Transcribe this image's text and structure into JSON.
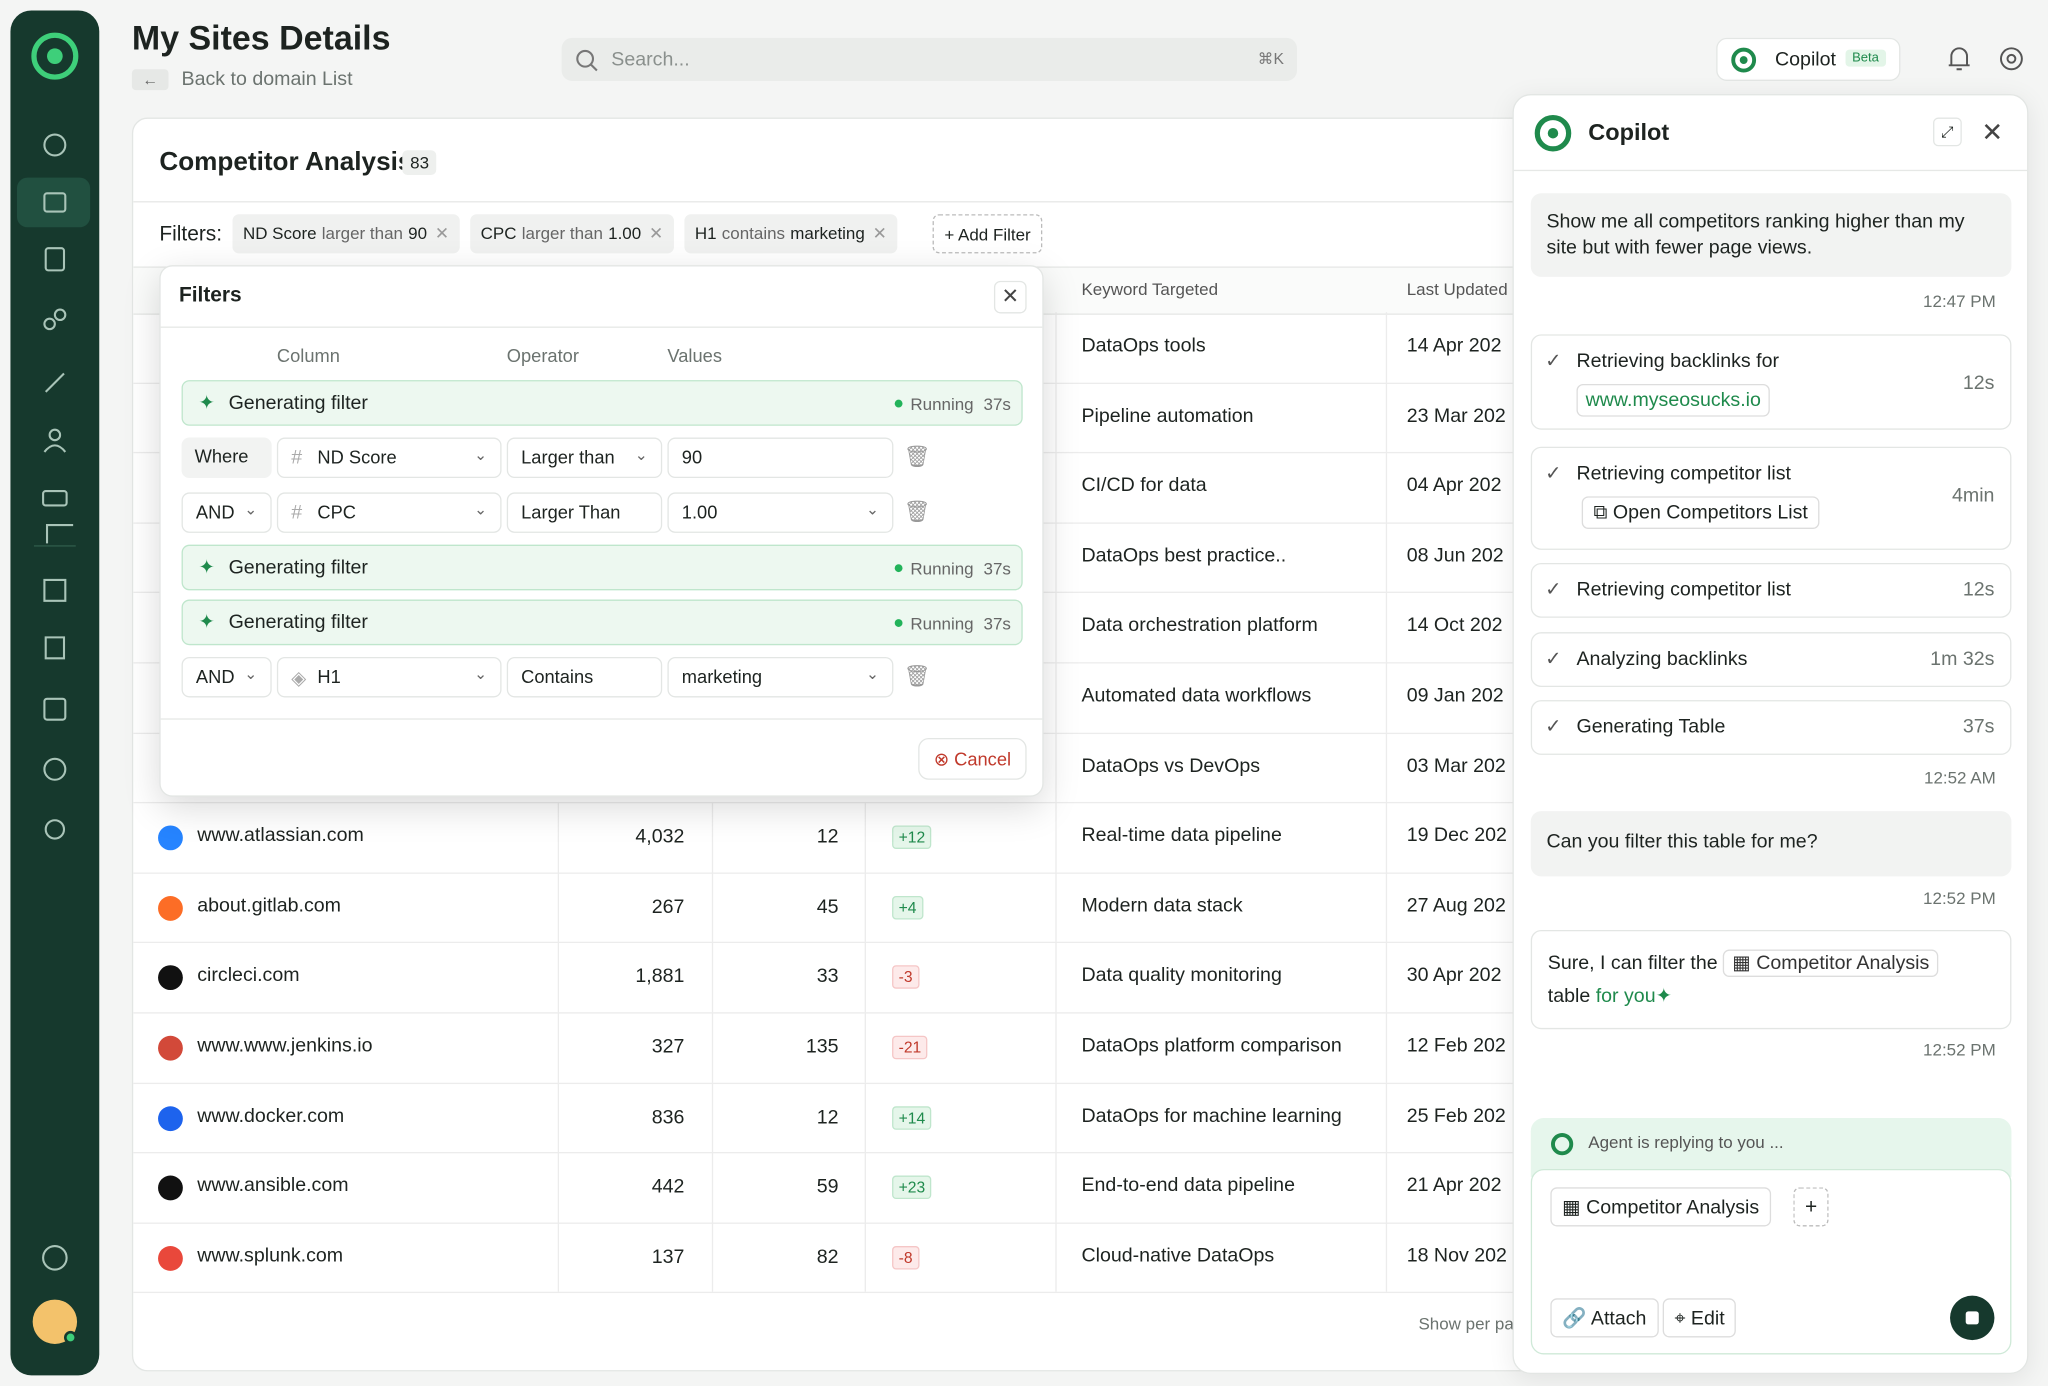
{
  "header": {
    "title": "My Sites Details",
    "back": "Back to domain List",
    "search_placeholder": "Search...",
    "shortcut": "⌘K",
    "copilot_button": "Copilot",
    "beta_badge": "Beta"
  },
  "card": {
    "title": "Competitor Analysis",
    "count": "83",
    "filters_label": "Filters:",
    "filter_chips": [
      {
        "column": "ND Score",
        "operator": "larger than",
        "value": "90"
      },
      {
        "column": "CPC",
        "operator": "larger than",
        "value": "1.00"
      },
      {
        "column": "H1",
        "operator": "contains",
        "value": "marketing"
      }
    ],
    "add_filter": "Add Filter",
    "footer": "Show per pa"
  },
  "table": {
    "headers": [
      "Keyword Targeted",
      "Last Updated"
    ],
    "rows": [
      {
        "keyword": "DataOps tools",
        "date": "14 Apr 202"
      },
      {
        "keyword": "Pipeline automation",
        "date": "23 Mar 202"
      },
      {
        "keyword": "CI/CD for data",
        "date": "04 Apr 202"
      },
      {
        "keyword": "DataOps best practice..",
        "date": "08 Jun 202"
      },
      {
        "keyword": "Data orchestration platform",
        "date": "14 Oct 202"
      },
      {
        "keyword": "Automated data workflows",
        "date": "09 Jan 202"
      },
      {
        "keyword": "DataOps vs DevOps",
        "date": "03 Mar 202"
      },
      {
        "domain": "www.atlassian.com",
        "pages": "4,032",
        "rank": "12",
        "change": "+12",
        "keyword": "Real-time data pipeline",
        "date": "19 Dec 202"
      },
      {
        "domain": "about.gitlab.com",
        "pages": "267",
        "rank": "45",
        "change": "+4",
        "keyword": "Modern data stack",
        "date": "27 Aug 202"
      },
      {
        "domain": "circleci.com",
        "pages": "1,881",
        "rank": "33",
        "change": "-3",
        "keyword": "Data quality monitoring",
        "date": "30 Apr 202"
      },
      {
        "domain": "www.www.jenkins.io",
        "pages": "327",
        "rank": "135",
        "change": "-21",
        "keyword": "DataOps platform comparison",
        "date": "12 Feb 202"
      },
      {
        "domain": "www.docker.com",
        "pages": "836",
        "rank": "12",
        "change": "+14",
        "keyword": "DataOps for machine learning",
        "date": "25 Feb 202"
      },
      {
        "domain": "www.ansible.com",
        "pages": "442",
        "rank": "59",
        "change": "+23",
        "keyword": "End-to-end data pipeline",
        "date": "21 Apr 202"
      },
      {
        "domain": "www.splunk.com",
        "pages": "137",
        "rank": "82",
        "change": "-8",
        "keyword": "Cloud-native DataOps",
        "date": "18 Nov 202"
      }
    ]
  },
  "filters_popup": {
    "title": "Filters",
    "columns": [
      "Column",
      "Operator",
      "Values"
    ],
    "rows": [
      {
        "generating": "Generating filter",
        "status": "Running",
        "time": "37s"
      },
      {
        "conjunction": "Where",
        "column": "ND Score",
        "operator": "Larger than",
        "value": "90"
      },
      {
        "conjunction": "AND",
        "column": "CPC",
        "operator": "Larger Than",
        "value": "1.00"
      },
      {
        "generating": "Generating filter",
        "status": "Running",
        "time": "37s"
      },
      {
        "generating": "Generating filter",
        "status": "Running",
        "time": "37s"
      },
      {
        "conjunction": "AND",
        "column": "H1",
        "operator": "Contains",
        "value": "marketing"
      }
    ],
    "cancel": "Cancel"
  },
  "copilot": {
    "title": "Copilot",
    "user_message_1": "Show me all competitors ranking higher than my site but with fewer page views.",
    "time_1": "12:47 PM",
    "steps": [
      {
        "label": "Retrieving backlinks for",
        "link": "www.myseosucks.io",
        "duration": "12s"
      },
      {
        "label": "Retrieving competitor list",
        "action": "Open Competitors List",
        "duration": "4min"
      },
      {
        "label": "Retrieving competitor list",
        "duration": "12s"
      },
      {
        "label": "Analyzing backlinks",
        "duration": "1m 32s"
      },
      {
        "label": "Generating Table",
        "duration": "37s"
      }
    ],
    "time_2": "12:52 AM",
    "user_message_2": "Can you filter this table for me?",
    "time_3": "12:52 PM",
    "reply_pre": "Sure, I can filter the",
    "reply_chip": "Competitor Analysis",
    "reply_mid": "table",
    "reply_post": "for you",
    "time_4": "12:52 PM",
    "agent_status": "Agent is replying to you ...",
    "input_chip": "Competitor Analysis",
    "attach": "Attach",
    "edit": "Edit"
  }
}
